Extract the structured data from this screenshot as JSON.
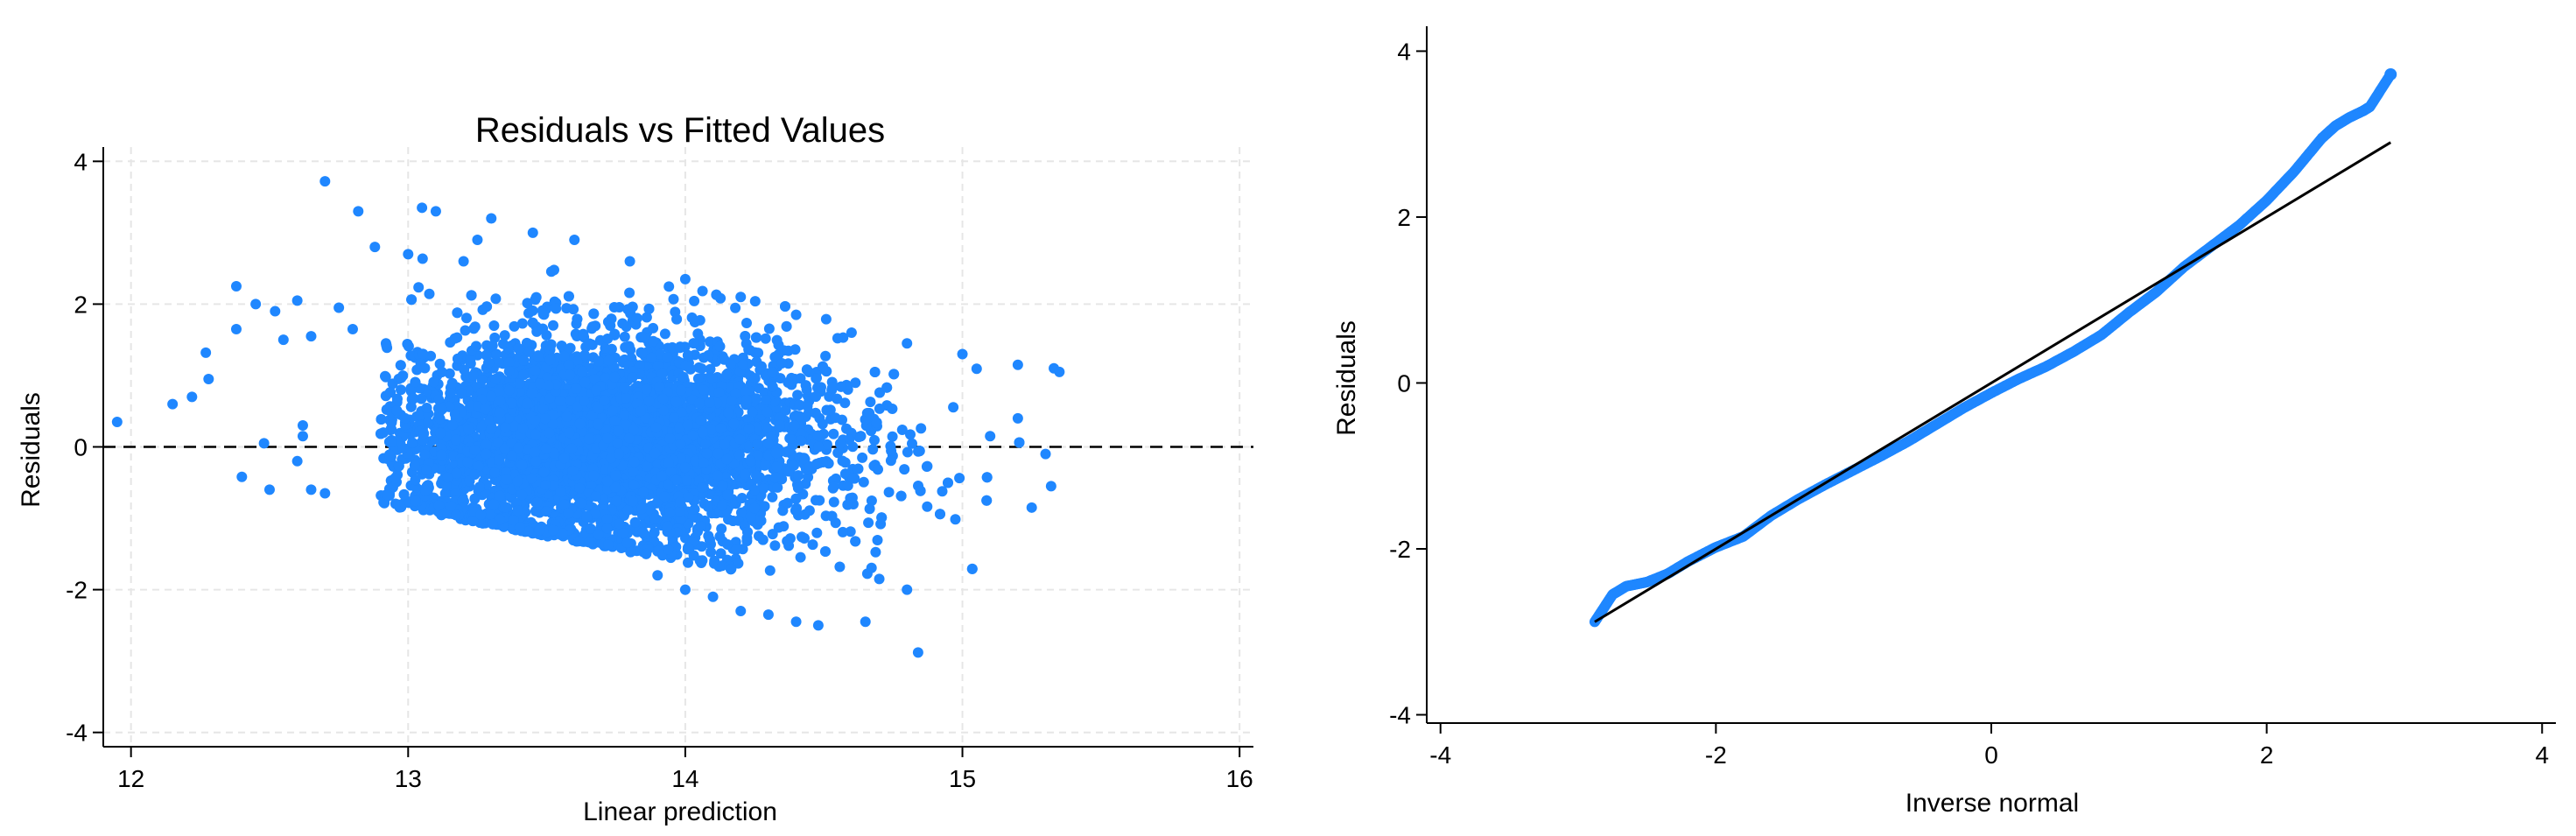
{
  "chart_data": [
    {
      "type": "scatter",
      "title": "Residuals vs Fitted Values",
      "xlabel": "Linear prediction",
      "ylabel": "Residuals",
      "xlim": [
        11.9,
        16.05
      ],
      "ylim": [
        -4.2,
        4.2
      ],
      "xticks": [
        12,
        13,
        14,
        15,
        16
      ],
      "yticks": [
        -4,
        -2,
        0,
        2,
        4
      ],
      "grid": true,
      "reference_line": {
        "y": 0,
        "style": "dashed"
      },
      "point_color": "#1f87ff",
      "line_color": "#000000",
      "grid_color": "#e6e6e6",
      "cloud_description": "dense point cloud centred near fitted 13.7, residuals roughly -2 to 3, with an upper diagonal edge falling from about 3.3 at x=13 to 1.2 at x=15.3",
      "series": [
        {
          "points": [
            [
              11.95,
              0.35
            ],
            [
              12.15,
              0.6
            ],
            [
              12.22,
              0.7
            ],
            [
              12.27,
              1.32
            ],
            [
              12.28,
              0.95
            ],
            [
              12.38,
              2.25
            ],
            [
              12.4,
              -0.42
            ],
            [
              12.38,
              1.65
            ],
            [
              12.45,
              2.0
            ],
            [
              12.48,
              0.05
            ],
            [
              12.52,
              1.9
            ],
            [
              12.55,
              1.5
            ],
            [
              12.6,
              2.05
            ],
            [
              12.62,
              0.3
            ],
            [
              12.65,
              1.55
            ],
            [
              12.7,
              3.72
            ],
            [
              12.75,
              1.95
            ],
            [
              12.8,
              1.65
            ],
            [
              12.82,
              3.3
            ],
            [
              12.88,
              2.8
            ],
            [
              12.92,
              1.45
            ],
            [
              13.0,
              2.7
            ],
            [
              13.05,
              3.35
            ],
            [
              13.1,
              3.3
            ],
            [
              13.2,
              2.6
            ],
            [
              13.25,
              2.9
            ],
            [
              13.3,
              3.2
            ],
            [
              13.45,
              3.0
            ],
            [
              13.6,
              2.9
            ],
            [
              13.8,
              2.6
            ],
            [
              14.0,
              2.35
            ],
            [
              14.2,
              2.1
            ],
            [
              14.4,
              1.85
            ],
            [
              14.6,
              1.6
            ],
            [
              14.8,
              1.45
            ],
            [
              15.0,
              1.3
            ],
            [
              15.2,
              1.15
            ],
            [
              15.33,
              1.1
            ],
            [
              15.35,
              1.05
            ],
            [
              15.3,
              -0.1
            ],
            [
              15.32,
              -0.55
            ],
            [
              15.25,
              -0.85
            ],
            [
              15.1,
              0.15
            ],
            [
              15.2,
              0.4
            ],
            [
              14.84,
              -2.88
            ],
            [
              14.8,
              -2.0
            ],
            [
              14.7,
              -1.85
            ],
            [
              14.65,
              -2.45
            ],
            [
              14.48,
              -2.5
            ],
            [
              14.4,
              -2.45
            ],
            [
              14.3,
              -2.35
            ],
            [
              14.2,
              -2.3
            ],
            [
              14.1,
              -2.1
            ],
            [
              14.0,
              -2.0
            ],
            [
              13.9,
              -1.8
            ],
            [
              12.5,
              -0.6
            ],
            [
              12.6,
              -0.2
            ],
            [
              12.62,
              0.15
            ],
            [
              12.65,
              -0.6
            ],
            [
              12.7,
              -0.65
            ]
          ]
        }
      ]
    },
    {
      "type": "scatter",
      "title": "",
      "xlabel": "Inverse normal",
      "ylabel": "Residuals",
      "xlim": [
        -4.1,
        4.1
      ],
      "ylim": [
        -4.1,
        4.3
      ],
      "xticks": [
        -4,
        -2,
        0,
        2,
        4
      ],
      "yticks": [
        -4,
        -2,
        0,
        2,
        4
      ],
      "grid": false,
      "point_color": "#1f87ff",
      "line_color": "#000000",
      "reference_line": {
        "from": [
          -2.88,
          -2.88
        ],
        "to": [
          2.9,
          2.9
        ]
      },
      "series": [
        {
          "points": [
            [
              -2.88,
              -2.88
            ],
            [
              -2.75,
              -2.55
            ],
            [
              -2.65,
              -2.45
            ],
            [
              -2.5,
              -2.4
            ],
            [
              -2.35,
              -2.3
            ],
            [
              -2.2,
              -2.15
            ],
            [
              -2.0,
              -1.98
            ],
            [
              -1.8,
              -1.85
            ],
            [
              -1.6,
              -1.6
            ],
            [
              -1.4,
              -1.4
            ],
            [
              -1.2,
              -1.22
            ],
            [
              -1.0,
              -1.05
            ],
            [
              -0.8,
              -0.88
            ],
            [
              -0.6,
              -0.7
            ],
            [
              -0.4,
              -0.5
            ],
            [
              -0.2,
              -0.3
            ],
            [
              0.0,
              -0.12
            ],
            [
              0.2,
              0.05
            ],
            [
              0.4,
              0.2
            ],
            [
              0.6,
              0.38
            ],
            [
              0.8,
              0.58
            ],
            [
              1.0,
              0.85
            ],
            [
              1.2,
              1.1
            ],
            [
              1.4,
              1.4
            ],
            [
              1.6,
              1.65
            ],
            [
              1.8,
              1.9
            ],
            [
              2.0,
              2.2
            ],
            [
              2.2,
              2.55
            ],
            [
              2.4,
              2.95
            ],
            [
              2.5,
              3.1
            ],
            [
              2.6,
              3.2
            ],
            [
              2.7,
              3.28
            ],
            [
              2.75,
              3.33
            ],
            [
              2.9,
              3.72
            ]
          ]
        }
      ]
    }
  ]
}
